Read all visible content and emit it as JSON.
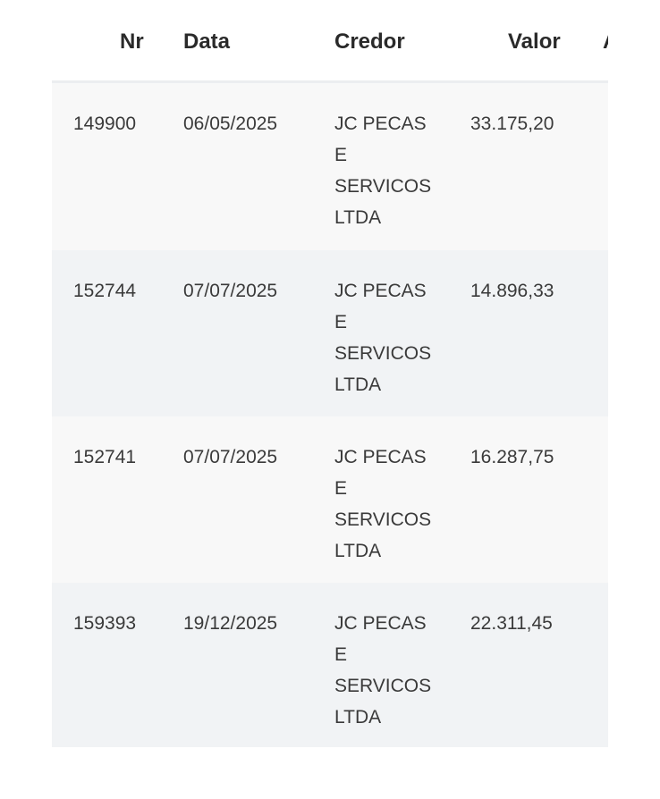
{
  "table": {
    "columns": [
      "Nr",
      "Data",
      "Credor",
      "Valor",
      "A"
    ],
    "rows": [
      {
        "nr": "149900",
        "data": "06/05/2025",
        "credor": "JC PECAS E SERVICOS LTDA",
        "valor": "33.175,20"
      },
      {
        "nr": "152744",
        "data": "07/07/2025",
        "credor": "JC PECAS E SERVICOS LTDA",
        "valor": "14.896,33"
      },
      {
        "nr": "152741",
        "data": "07/07/2025",
        "credor": "JC PECAS E SERVICOS LTDA",
        "valor": "16.287,75"
      },
      {
        "nr": "159393",
        "data": "19/12/2025",
        "credor": "JC PECAS E SERVICOS LTDA",
        "valor": "22.311,45"
      }
    ]
  },
  "colors": {
    "row_odd": "#f8f8f8",
    "row_even": "#f1f3f5",
    "header_border": "#eceef0"
  }
}
